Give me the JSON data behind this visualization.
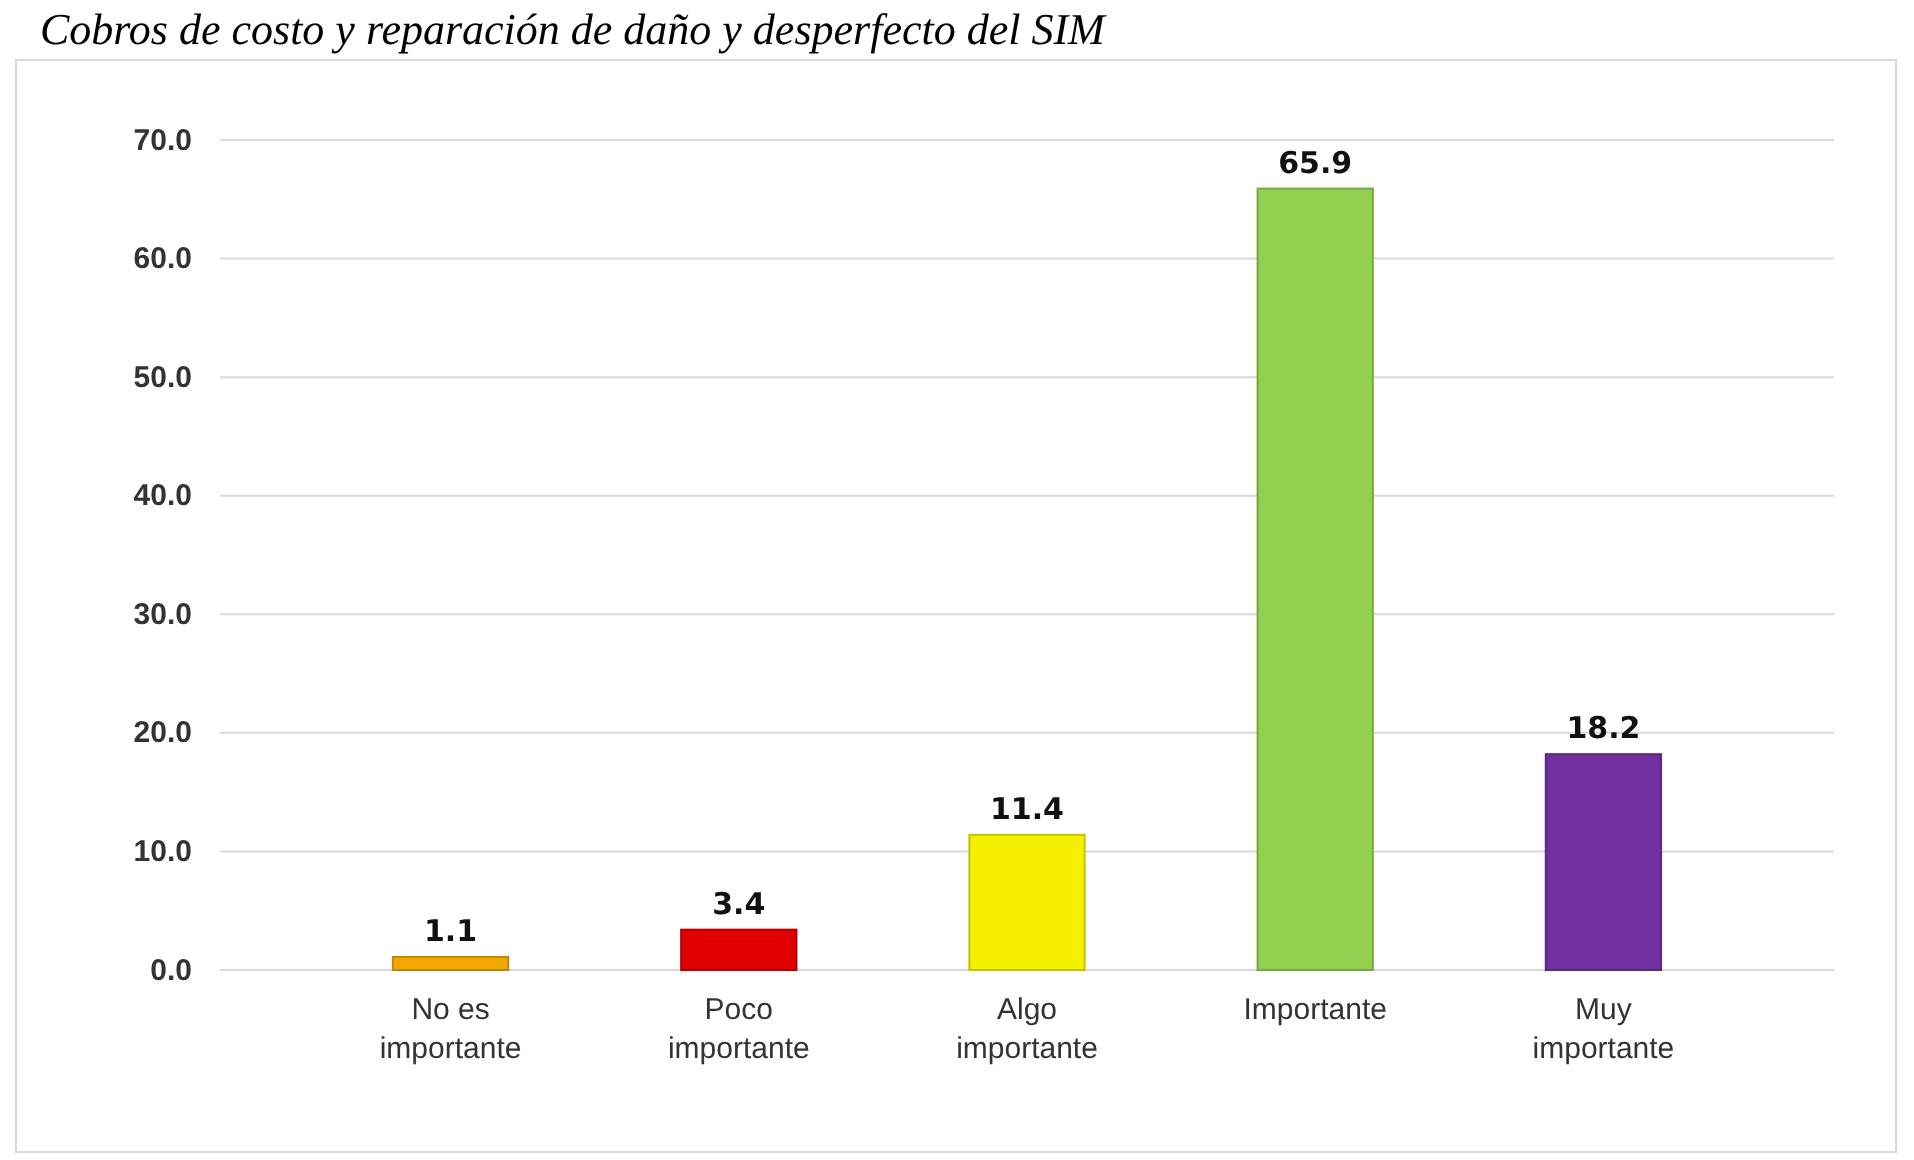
{
  "chart_data": {
    "type": "bar",
    "title": "Cobros de costo y reparación de daño y desperfecto del SIM",
    "categories": [
      "No es importante",
      "Poco importante",
      "Algo importante",
      "Importante",
      "Muy importante"
    ],
    "values": [
      1.1,
      3.4,
      11.4,
      65.9,
      18.2
    ],
    "colors": [
      "#f0a800",
      "#e00000",
      "#f5f000",
      "#92d050",
      "#7030a0"
    ],
    "ylim": [
      0,
      70
    ],
    "yticks": [
      {
        "value": 0,
        "label": "0.0"
      },
      {
        "value": 10,
        "label": "10.0"
      },
      {
        "value": 20,
        "label": "20.0"
      },
      {
        "value": 30,
        "label": "30.0"
      },
      {
        "value": 40,
        "label": "40.0"
      },
      {
        "value": 50,
        "label": "50.0"
      },
      {
        "value": 60,
        "label": "60.0"
      },
      {
        "value": 70,
        "label": "70.0"
      }
    ],
    "grid": "y",
    "data_labels": true
  }
}
